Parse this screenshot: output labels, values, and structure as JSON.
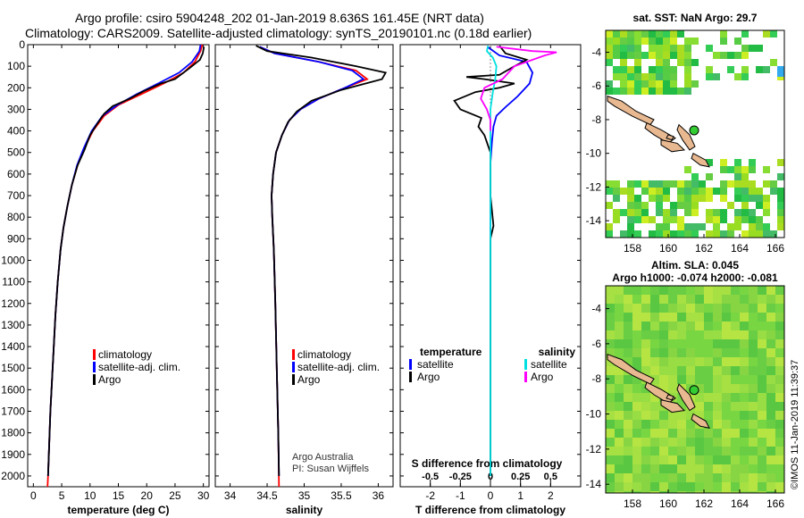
{
  "header": {
    "line1": "Argo profile: csiro 5904248_202 01-Jan-2019 8.636S 161.45E (NRT data)",
    "line2": "Climatology: CARS2009. Satellite-adjusted climatology: synTS_20190101.nc (0.18d earlier)"
  },
  "footer_stamp": "©IMOS 11-Jan-2019 11:39:37",
  "depth_axis": {
    "ylim": [
      0,
      2050
    ],
    "ticks": [
      0,
      100,
      200,
      300,
      400,
      500,
      600,
      700,
      800,
      900,
      1000,
      1100,
      1200,
      1300,
      1400,
      1500,
      1600,
      1700,
      1800,
      1900,
      2000
    ]
  },
  "colors": {
    "climatology": "#ff0000",
    "satellite": "#0000ff",
    "argo": "#000000",
    "sat_salinity": "#00e0e0",
    "argo_salinity": "#ff00ff",
    "island": "#e8b890",
    "argo_marker": "#33cc33"
  },
  "chart_data": [
    {
      "type": "line",
      "id": "temperature",
      "xlabel": "temperature (deg C)",
      "xlim": [
        -1,
        31
      ],
      "xticks": [
        0,
        5,
        10,
        15,
        20,
        25,
        30
      ],
      "xticklabels": [
        "0",
        "5",
        "10",
        "15",
        "20",
        "25",
        "30"
      ],
      "legend": [
        {
          "label": "climatology",
          "color": "#ff0000"
        },
        {
          "label": "satellite-adj. clim.",
          "color": "#0000ff"
        },
        {
          "label": "Argo",
          "color": "#000000"
        }
      ],
      "series": [
        {
          "name": "climatology",
          "color": "#ff0000",
          "points": [
            [
              29.8,
              0
            ],
            [
              29.5,
              30
            ],
            [
              28.5,
              80
            ],
            [
              26.5,
              130
            ],
            [
              23,
              180
            ],
            [
              19,
              230
            ],
            [
              15,
              280
            ],
            [
              12.5,
              330
            ],
            [
              10.5,
              400
            ],
            [
              9,
              480
            ],
            [
              7.8,
              560
            ],
            [
              6.8,
              650
            ],
            [
              6,
              750
            ],
            [
              5.3,
              850
            ],
            [
              4.8,
              950
            ],
            [
              4.3,
              1100
            ],
            [
              3.9,
              1250
            ],
            [
              3.6,
              1400
            ],
            [
              3.3,
              1550
            ],
            [
              3.0,
              1700
            ],
            [
              2.8,
              1850
            ],
            [
              2.6,
              2000
            ],
            [
              2.5,
              2050
            ]
          ]
        },
        {
          "name": "satellite-adj. clim.",
          "color": "#0000ff",
          "points": [
            [
              29.5,
              0
            ],
            [
              29.3,
              30
            ],
            [
              28,
              80
            ],
            [
              25.7,
              130
            ],
            [
              22,
              180
            ],
            [
              18.2,
              230
            ],
            [
              14.8,
              280
            ],
            [
              12.2,
              330
            ],
            [
              10.3,
              400
            ],
            [
              8.9,
              480
            ],
            [
              7.7,
              560
            ],
            [
              6.8,
              650
            ],
            [
              6,
              750
            ],
            [
              5.3,
              850
            ],
            [
              4.8,
              950
            ],
            [
              4.3,
              1100
            ],
            [
              3.9,
              1250
            ],
            [
              3.6,
              1400
            ],
            [
              3.3,
              1550
            ],
            [
              3.0,
              1700
            ],
            [
              2.8,
              1850
            ],
            [
              2.6,
              2000
            ]
          ]
        },
        {
          "name": "Argo",
          "color": "#000000",
          "points": [
            [
              30.1,
              10
            ],
            [
              29.9,
              40
            ],
            [
              29.4,
              70
            ],
            [
              27.5,
              110
            ],
            [
              25,
              160
            ],
            [
              22.5,
              180
            ],
            [
              19.5,
              215
            ],
            [
              17,
              250
            ],
            [
              14,
              285
            ],
            [
              12.5,
              320
            ],
            [
              11.2,
              370
            ],
            [
              10,
              420
            ],
            [
              9,
              490
            ],
            [
              7.8,
              560
            ],
            [
              6.8,
              650
            ],
            [
              6,
              750
            ],
            [
              5.3,
              850
            ],
            [
              4.8,
              950
            ],
            [
              4.3,
              1100
            ],
            [
              3.9,
              1250
            ],
            [
              3.6,
              1400
            ],
            [
              3.3,
              1550
            ],
            [
              3.0,
              1700
            ],
            [
              2.8,
              1850
            ],
            [
              2.6,
              2000
            ]
          ]
        }
      ]
    },
    {
      "type": "line",
      "id": "salinity",
      "xlabel": "salinity",
      "xlim": [
        33.8,
        36.2
      ],
      "xticks": [
        34,
        34.5,
        35,
        35.5,
        36
      ],
      "xticklabels": [
        "34",
        "34.5",
        "35",
        "35.5",
        "36"
      ],
      "legend": [
        {
          "label": "climatology",
          "color": "#ff0000"
        },
        {
          "label": "satellite-adj. clim.",
          "color": "#0000ff"
        },
        {
          "label": "Argo",
          "color": "#000000"
        }
      ],
      "annotation": [
        "Argo Australia",
        "PI: Susan Wijffels"
      ],
      "series": [
        {
          "name": "climatology",
          "color": "#ff0000",
          "points": [
            [
              34.4,
              10
            ],
            [
              34.6,
              40
            ],
            [
              35.2,
              80
            ],
            [
              35.7,
              120
            ],
            [
              35.85,
              160
            ],
            [
              35.55,
              200
            ],
            [
              35.2,
              250
            ],
            [
              34.95,
              300
            ],
            [
              34.8,
              350
            ],
            [
              34.7,
              420
            ],
            [
              34.62,
              500
            ],
            [
              34.58,
              600
            ],
            [
              34.56,
              700
            ],
            [
              34.57,
              800
            ],
            [
              34.59,
              950
            ],
            [
              34.61,
              1200
            ],
            [
              34.63,
              1500
            ],
            [
              34.65,
              1800
            ],
            [
              34.66,
              2050
            ]
          ]
        },
        {
          "name": "satellite-adj. clim.",
          "color": "#0000ff",
          "points": [
            [
              34.4,
              10
            ],
            [
              34.6,
              40
            ],
            [
              35.2,
              80
            ],
            [
              35.65,
              120
            ],
            [
              35.8,
              160
            ],
            [
              35.55,
              200
            ],
            [
              35.2,
              250
            ],
            [
              34.95,
              300
            ],
            [
              34.8,
              350
            ],
            [
              34.7,
              420
            ],
            [
              34.62,
              500
            ],
            [
              34.58,
              600
            ],
            [
              34.56,
              700
            ],
            [
              34.57,
              800
            ],
            [
              34.59,
              950
            ],
            [
              34.61,
              1200
            ],
            [
              34.63,
              1500
            ],
            [
              34.65,
              1800
            ],
            [
              34.66,
              2000
            ]
          ]
        },
        {
          "name": "Argo",
          "color": "#000000",
          "points": [
            [
              34.35,
              5
            ],
            [
              34.5,
              30
            ],
            [
              35.1,
              60
            ],
            [
              35.7,
              100
            ],
            [
              36.1,
              130
            ],
            [
              36.05,
              160
            ],
            [
              35.5,
              210
            ],
            [
              35.1,
              260
            ],
            [
              34.9,
              310
            ],
            [
              34.78,
              360
            ],
            [
              34.7,
              420
            ],
            [
              34.62,
              500
            ],
            [
              34.58,
              600
            ],
            [
              34.56,
              700
            ],
            [
              34.57,
              800
            ],
            [
              34.59,
              950
            ],
            [
              34.61,
              1200
            ],
            [
              34.63,
              1500
            ],
            [
              34.65,
              1800
            ],
            [
              34.66,
              2000
            ]
          ]
        }
      ]
    },
    {
      "type": "line",
      "id": "difference",
      "xlabel": "T difference from climatology",
      "xlabel2": "S difference from climatology",
      "xlim": [
        -3,
        3
      ],
      "xticks": [
        -2,
        -1,
        0,
        1,
        2
      ],
      "xticklabels": [
        "-2",
        "-1",
        "0",
        "1",
        "2"
      ],
      "sxlim": [
        -0.75,
        0.75
      ],
      "sxticks": [
        -0.5,
        -0.25,
        0,
        0.25,
        0.5
      ],
      "sxticklabels": [
        "-0.5",
        "-0.25",
        "0",
        "0.25",
        "0.5"
      ],
      "legend_left_title": "temperature",
      "legend_right_title": "salinity",
      "legend_left": [
        {
          "label": "satellite",
          "color": "#0000ff"
        },
        {
          "label": "Argo",
          "color": "#000000"
        }
      ],
      "legend_right": [
        {
          "label": "satellite",
          "color": "#00e0e0"
        },
        {
          "label": "Argo",
          "color": "#ff00ff"
        }
      ],
      "series": [
        {
          "name": "T satellite",
          "axis": "T",
          "color": "#0000ff",
          "points": [
            [
              -0.1,
              10
            ],
            [
              0.3,
              50
            ],
            [
              1.2,
              80
            ],
            [
              1.4,
              130
            ],
            [
              1.3,
              180
            ],
            [
              0.9,
              240
            ],
            [
              0.5,
              290
            ],
            [
              0.2,
              330
            ],
            [
              0.1,
              380
            ],
            [
              0.05,
              450
            ],
            [
              0,
              550
            ],
            [
              0,
              700
            ],
            [
              0,
              900
            ],
            [
              0,
              1200
            ],
            [
              0,
              1600
            ],
            [
              0,
              2000
            ]
          ]
        },
        {
          "name": "T Argo",
          "axis": "T",
          "color": "#000000",
          "points": [
            [
              0.3,
              5
            ],
            [
              0.5,
              40
            ],
            [
              1.2,
              70
            ],
            [
              0.8,
              100
            ],
            [
              0.3,
              140
            ],
            [
              -0.8,
              150
            ],
            [
              -0.2,
              160
            ],
            [
              0.8,
              180
            ],
            [
              0.3,
              200
            ],
            [
              -0.5,
              220
            ],
            [
              -1.2,
              260
            ],
            [
              -1,
              300
            ],
            [
              -0.3,
              340
            ],
            [
              -0.4,
              380
            ],
            [
              -0.2,
              420
            ],
            [
              0,
              500
            ],
            [
              0,
              700
            ],
            [
              0.1,
              840
            ],
            [
              0,
              900
            ],
            [
              0,
              1200
            ],
            [
              0,
              1600
            ],
            [
              0,
              2000
            ]
          ]
        },
        {
          "name": "S satellite",
          "axis": "S",
          "color": "#00e0e0",
          "points": [
            [
              -0.02,
              5
            ],
            [
              -0.03,
              30
            ],
            [
              0.02,
              60
            ],
            [
              0.05,
              100
            ],
            [
              0.04,
              160
            ],
            [
              0.02,
              220
            ],
            [
              0,
              300
            ],
            [
              0,
              500
            ],
            [
              0,
              1000
            ],
            [
              0,
              2000
            ]
          ]
        },
        {
          "name": "S Argo",
          "axis": "S",
          "color": "#ff00ff",
          "points": [
            [
              0.05,
              10
            ],
            [
              0.35,
              30
            ],
            [
              0.55,
              35
            ],
            [
              0.45,
              50
            ],
            [
              0.2,
              100
            ],
            [
              0.1,
              160
            ],
            [
              -0.05,
              200
            ],
            [
              -0.08,
              250
            ],
            [
              -0.03,
              300
            ],
            [
              0,
              350
            ],
            [
              0,
              400
            ]
          ]
        }
      ]
    }
  ],
  "maps": {
    "sst": {
      "title": "sat. SST: NaN Argo: 29.7",
      "xlim": [
        156.5,
        166.5
      ],
      "ylim": [
        -15,
        -2.7
      ],
      "xticks": [
        158,
        160,
        162,
        164,
        166
      ],
      "xticklabels": [
        "158",
        "160",
        "162",
        "164",
        "166"
      ],
      "yticks": [
        -4,
        -6,
        -8,
        -10,
        -12,
        -14
      ],
      "yticklabels": [
        "-4",
        "-6",
        "-8",
        "-10",
        "-12",
        "-14"
      ],
      "argo_position": [
        161.45,
        -8.636
      ]
    },
    "sla": {
      "title": "Altim. SLA: 0.045",
      "subtitle": "Argo h1000: -0.074 h2000: -0.081",
      "xlim": [
        156.5,
        166.5
      ],
      "ylim": [
        -14.5,
        -2.7
      ],
      "xticks": [
        158,
        160,
        162,
        164,
        166
      ],
      "xticklabels": [
        "158",
        "160",
        "162",
        "164",
        "166"
      ],
      "yticks": [
        -4,
        -6,
        -8,
        -10,
        -12,
        -14
      ],
      "yticklabels": [
        "-4",
        "-6",
        "-8",
        "-10",
        "-12",
        "-14"
      ],
      "argo_position": [
        161.45,
        -8.636
      ]
    }
  }
}
